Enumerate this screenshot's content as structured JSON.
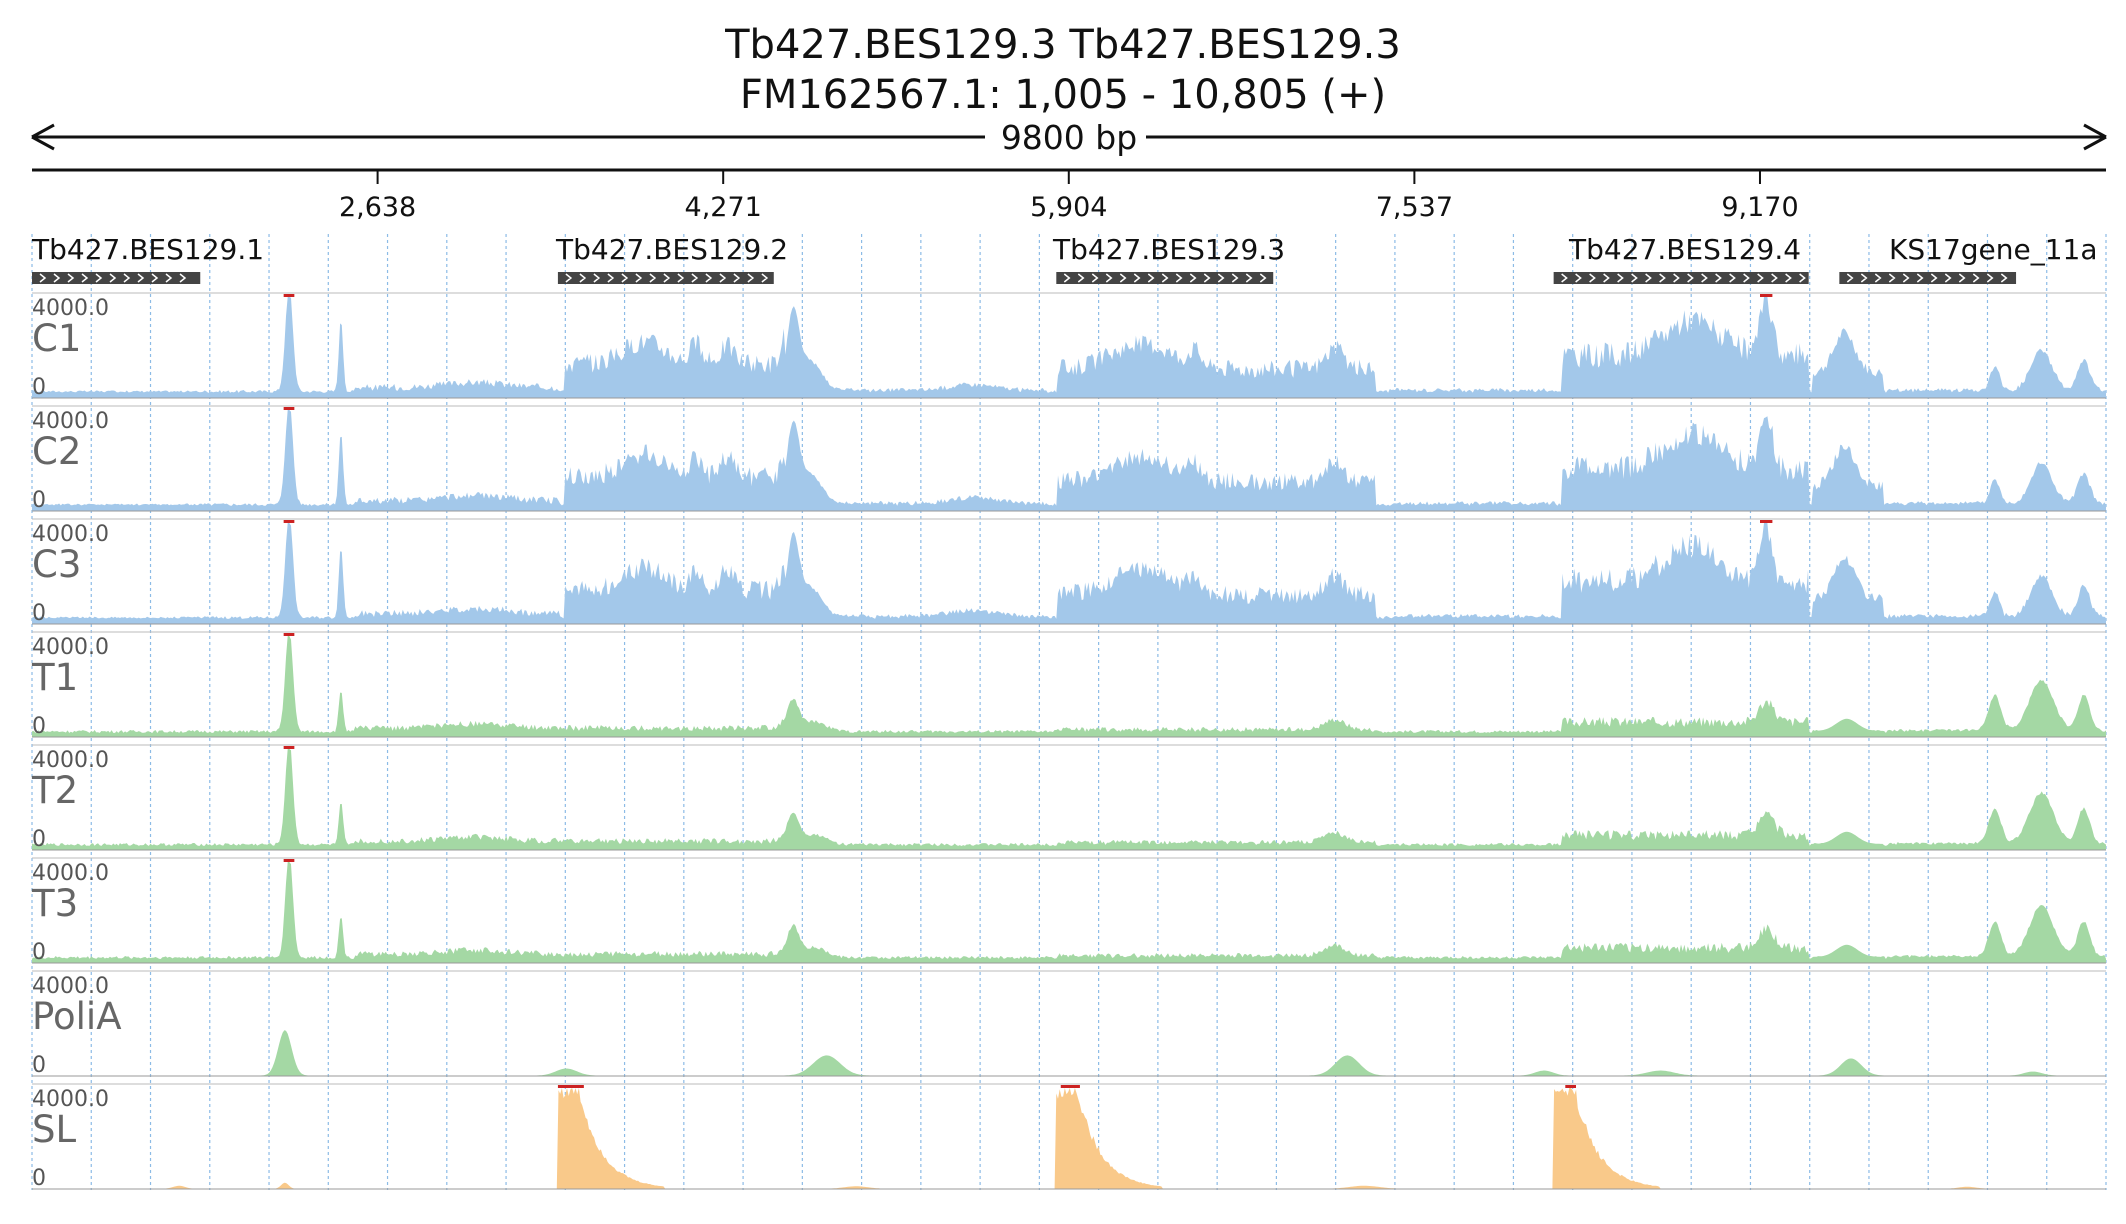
{
  "header": {
    "title_line1": "Tb427.BES129.3  Tb427.BES129.3",
    "title_line2": "FM162567.1: 1,005 - 10,805 (+)",
    "span_label": "9800 bp"
  },
  "chart_data": {
    "type": "area",
    "x_range": [
      1005,
      10805
    ],
    "ticks": [
      2638,
      4271,
      5904,
      7537,
      9170
    ],
    "tick_labels": [
      "2,638",
      "4,271",
      "5,904",
      "7,537",
      "9,170"
    ],
    "genes": [
      {
        "name": "Tb427.BES129.1",
        "start": 1005,
        "end": 1800,
        "strand": "+"
      },
      {
        "name": "Tb427.BES129.2",
        "start": 3490,
        "end": 4510,
        "strand": "+"
      },
      {
        "name": "Tb427.BES129.3",
        "start": 5845,
        "end": 6870,
        "strand": "+"
      },
      {
        "name": "Tb427.BES129.4",
        "start": 8195,
        "end": 9400,
        "strand": "+"
      },
      {
        "name": "KS17gene_11a",
        "start": 9545,
        "end": 10380,
        "strand": "+"
      }
    ],
    "colors": {
      "C": "#a3c8ea",
      "T": "#a4d8a4",
      "PoliA": "#a4d8a4",
      "SL": "#f9c98a",
      "clip": "#cc2222",
      "gene": "#444444"
    },
    "tracks": [
      {
        "name": "C1",
        "max_label": "4000.0",
        "min_label": "0",
        "profile": "coding"
      },
      {
        "name": "C2",
        "max_label": "4000.0",
        "min_label": "0",
        "profile": "coding"
      },
      {
        "name": "C3",
        "max_label": "4000.0",
        "min_label": "0",
        "profile": "coding"
      },
      {
        "name": "T1",
        "max_label": "4000.0",
        "min_label": "0",
        "profile": "treated"
      },
      {
        "name": "T2",
        "max_label": "4000.0",
        "min_label": "0",
        "profile": "treated"
      },
      {
        "name": "T3",
        "max_label": "4000.0",
        "min_label": "0",
        "profile": "treated"
      },
      {
        "name": "PoliA",
        "max_label": "4000.0",
        "min_label": "0",
        "profile": "polia"
      },
      {
        "name": "SL",
        "max_label": "4000.0",
        "min_label": "0",
        "profile": "sl"
      }
    ]
  }
}
